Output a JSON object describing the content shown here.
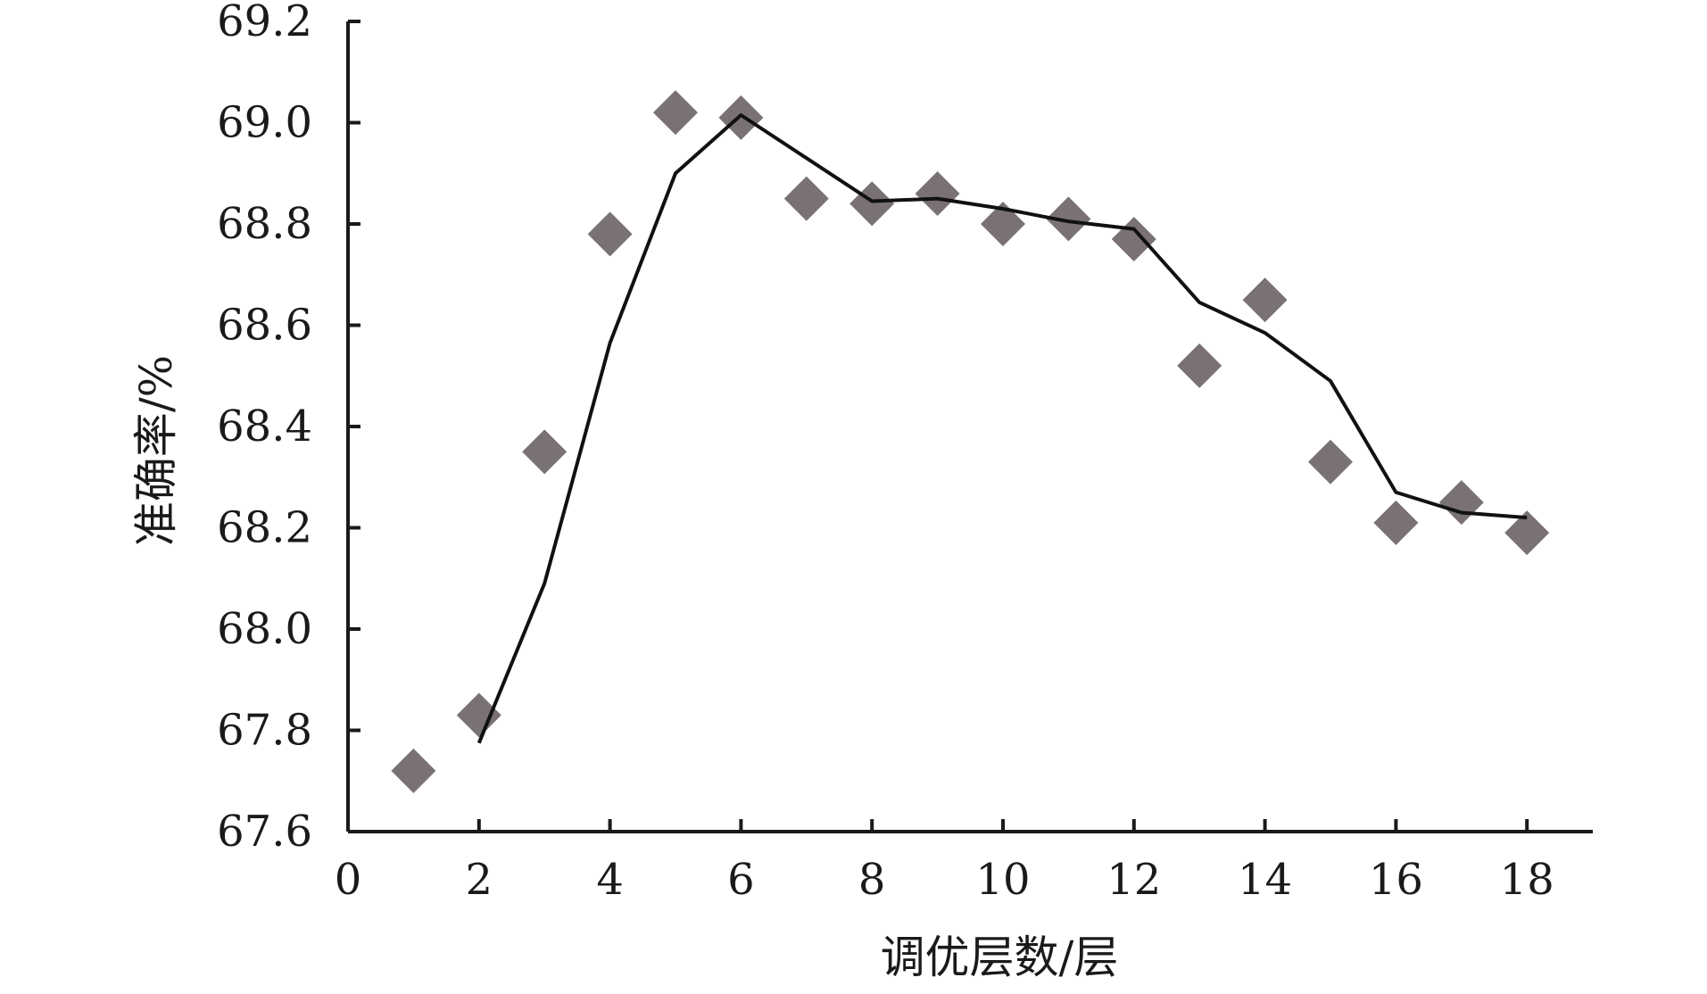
{
  "chart_data": {
    "type": "scatter",
    "title": "",
    "xlabel": "调优层数/层",
    "ylabel": "准确率/%",
    "xlim": [
      0,
      19
    ],
    "ylim": [
      67.6,
      69.2
    ],
    "x_ticks": [
      0,
      2,
      4,
      6,
      8,
      10,
      12,
      14,
      16,
      18
    ],
    "x_tick_labels": [
      "0",
      "2",
      "4",
      "6",
      "8",
      "10",
      "12",
      "14",
      "16",
      "18"
    ],
    "y_ticks": [
      67.6,
      67.8,
      68.0,
      68.2,
      68.4,
      68.6,
      68.8,
      69.0,
      69.2
    ],
    "y_tick_labels": [
      "67.6",
      "67.8",
      "68.0",
      "68.2",
      "68.4",
      "68.6",
      "68.8",
      "69.0",
      "69.2"
    ],
    "grid": false,
    "legend": "none",
    "series": [
      {
        "type": "scatter",
        "marker": "diamond",
        "color": "#7a7272",
        "x": [
          1,
          2,
          3,
          4,
          5,
          6,
          7,
          8,
          9,
          10,
          11,
          12,
          13,
          14,
          15,
          16,
          17,
          18
        ],
        "y": [
          67.72,
          67.83,
          68.35,
          68.78,
          69.02,
          69.01,
          68.85,
          68.84,
          68.86,
          68.8,
          68.81,
          68.77,
          68.52,
          68.65,
          68.33,
          68.21,
          68.25,
          68.19
        ]
      },
      {
        "type": "line",
        "color": "#111111",
        "x": [
          2,
          3,
          4,
          5,
          6,
          7,
          8,
          9,
          10,
          11,
          12,
          13,
          14,
          15,
          16,
          17,
          18
        ],
        "y": [
          67.775,
          68.09,
          68.565,
          68.9,
          69.015,
          68.93,
          68.845,
          68.85,
          68.83,
          68.805,
          68.79,
          68.645,
          68.585,
          68.49,
          68.27,
          68.23,
          68.22
        ]
      }
    ]
  }
}
